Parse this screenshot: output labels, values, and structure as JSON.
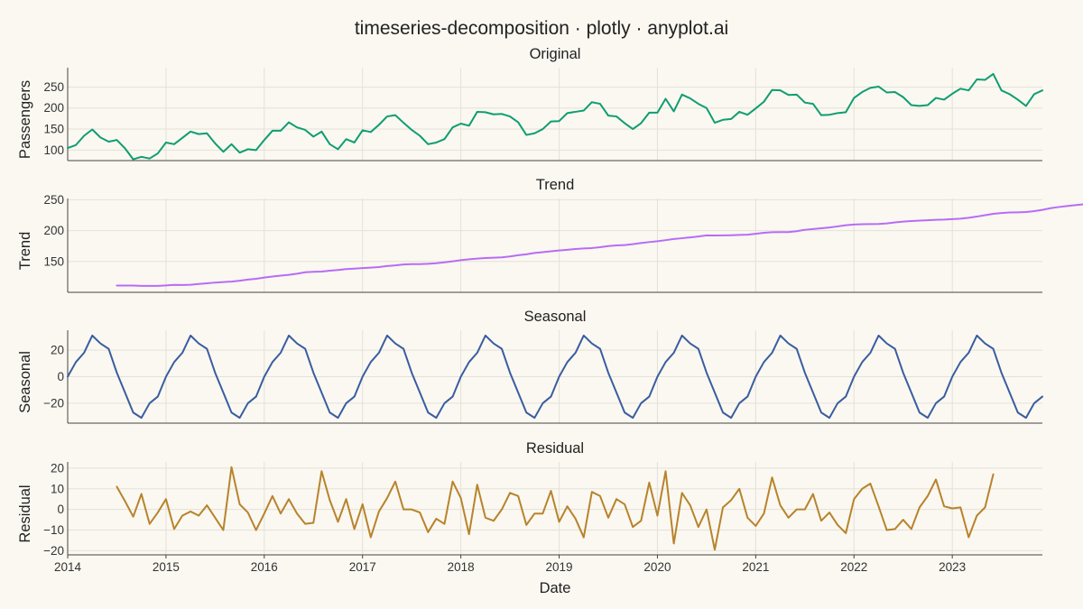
{
  "title": "timeseries-decomposition · plotly · anyplot.ai",
  "chart_data": [
    {
      "type": "line",
      "subtitle": "Original",
      "ylabel": "Passengers",
      "xlabel": "",
      "ylim": [
        75,
        296
      ],
      "yticks": [
        100,
        150,
        200,
        250
      ],
      "color": "#0F9D72",
      "x_start": "2014-01",
      "x_step": "1 month",
      "values": [
        105,
        112,
        134,
        149,
        130,
        120,
        124,
        104,
        78,
        84,
        80,
        92,
        118,
        114,
        129,
        144,
        138,
        140,
        116,
        96,
        114,
        94,
        102,
        100,
        124,
        146,
        146,
        166,
        154,
        148,
        132,
        144,
        114,
        102,
        126,
        118,
        147,
        143,
        160,
        180,
        183,
        165,
        148,
        134,
        114,
        118,
        126,
        154,
        163,
        158,
        191,
        190,
        185,
        186,
        180,
        166,
        136,
        140,
        150,
        168,
        169,
        188,
        191,
        194,
        214,
        210,
        182,
        180,
        164,
        150,
        164,
        189,
        189,
        222,
        192,
        232,
        223,
        210,
        200,
        165,
        172,
        174,
        191,
        184,
        199,
        215,
        243,
        242,
        231,
        232,
        213,
        210,
        183,
        184,
        188,
        190,
        224,
        238,
        248,
        251,
        237,
        238,
        226,
        207,
        205,
        207,
        224,
        220,
        234,
        246,
        242,
        268,
        267,
        281,
        242,
        233,
        220,
        205,
        233,
        242
      ]
    },
    {
      "type": "line",
      "subtitle": "Trend",
      "ylabel": "Trend",
      "xlabel": "",
      "ylim": [
        100,
        252
      ],
      "yticks": [
        150,
        200,
        250
      ],
      "color": "#B86CF5",
      "x_start": "2014-07",
      "x_step": "1 month",
      "values": [
        111,
        111,
        111,
        110.5,
        110.5,
        110.5,
        111.2,
        112,
        111.8,
        112.2,
        113.5,
        114.6,
        115.8,
        116.6,
        117.4,
        118.8,
        120.6,
        122,
        124,
        125.5,
        127,
        128.3,
        130.1,
        132.5,
        133.2,
        133.6,
        135,
        136.2,
        137.6,
        138.4,
        139.3,
        140,
        141,
        142.6,
        143.7,
        145.2,
        145.7,
        145.6,
        146.3,
        147.2,
        148.6,
        150.2,
        152.1,
        153.6,
        154.6,
        155.6,
        156.1,
        156.6,
        158.1,
        160.1,
        161.6,
        163.7,
        165,
        166.5,
        167.7,
        168.9,
        170.2,
        171,
        171.7,
        173,
        174.9,
        176,
        176.6,
        178,
        179.8,
        181.4,
        182.8,
        184.5,
        186.4,
        187.6,
        189,
        190.5,
        192.2,
        192,
        192.2,
        192.5,
        193,
        193.4,
        194.9,
        196.4,
        197.3,
        197.5,
        197.5,
        199,
        201.3,
        202.5,
        203.8,
        205.1,
        206.8,
        208.7,
        209.8,
        210.4,
        210.6,
        210.8,
        211.6,
        213.2,
        214.5,
        215.5,
        216.1,
        216.8,
        217.4,
        217.8,
        218.5,
        219.3,
        220.7,
        222.7,
        225,
        227.1,
        228.4,
        229.3,
        229.6,
        230,
        231.5,
        233.6,
        236.3,
        238.2,
        239.8,
        241.3,
        242.5,
        243.2,
        243.2,
        243.8
      ]
    },
    {
      "type": "line",
      "subtitle": "Seasonal",
      "ylabel": "Seasonal",
      "xlabel": "",
      "ylim": [
        -35,
        35
      ],
      "yticks": [
        -20,
        0,
        20
      ],
      "color": "#3A5DA0",
      "x_start": "2014-01",
      "x_step": "1 month",
      "pattern": [
        0,
        11,
        18,
        31,
        25,
        21,
        3,
        -12,
        -27,
        -31,
        -20,
        -15
      ],
      "values": [
        0,
        11,
        18,
        31,
        25,
        21,
        3,
        -12,
        -27,
        -31,
        -20,
        -15,
        0,
        11,
        18,
        31,
        25,
        21,
        3,
        -12,
        -27,
        -31,
        -20,
        -15,
        0,
        11,
        18,
        31,
        25,
        21,
        3,
        -12,
        -27,
        -31,
        -20,
        -15,
        0,
        11,
        18,
        31,
        25,
        21,
        3,
        -12,
        -27,
        -31,
        -20,
        -15,
        0,
        11,
        18,
        31,
        25,
        21,
        3,
        -12,
        -27,
        -31,
        -20,
        -15,
        0,
        11,
        18,
        31,
        25,
        21,
        3,
        -12,
        -27,
        -31,
        -20,
        -15,
        0,
        11,
        18,
        31,
        25,
        21,
        3,
        -12,
        -27,
        -31,
        -20,
        -15,
        0,
        11,
        18,
        31,
        25,
        21,
        3,
        -12,
        -27,
        -31,
        -20,
        -15,
        0,
        11,
        18,
        31,
        25,
        21,
        3,
        -12,
        -27,
        -31,
        -20,
        -15,
        0,
        11,
        18,
        31,
        25,
        21,
        3,
        -12,
        -27,
        -31,
        -20,
        -15
      ]
    },
    {
      "type": "line",
      "subtitle": "Residual",
      "ylabel": "Residual",
      "xlabel": "Date",
      "ylim": [
        -22,
        23
      ],
      "yticks": [
        -20,
        -10,
        0,
        10,
        20
      ],
      "color": "#B8832C",
      "x_start": "2014-07",
      "x_step": "1 month",
      "values": [
        11,
        4,
        -3.5,
        7.5,
        -7,
        -1.5,
        5,
        -9.5,
        -3,
        -1,
        -3,
        2,
        -4,
        -10,
        20.5,
        2.5,
        -1.5,
        -10,
        -2,
        6.5,
        -2,
        5,
        -2,
        -7,
        -6.5,
        18.5,
        4.5,
        -6,
        5,
        -9.5,
        2.5,
        -13.5,
        -1,
        5.5,
        13.5,
        0,
        0,
        -1.5,
        -11,
        -4.5,
        -7,
        13.5,
        5.5,
        -12,
        12,
        -4,
        -5.5,
        0,
        8,
        6.5,
        -7.5,
        -2,
        -2,
        9,
        -6,
        1.5,
        -4.5,
        -13.5,
        8.5,
        6.5,
        -4,
        5,
        2.5,
        -8.5,
        -5.5,
        13,
        -3,
        18.5,
        -16.5,
        8,
        2,
        -8.5,
        0,
        -19.5,
        1,
        4.5,
        10,
        -4,
        -8,
        -2,
        15.5,
        2,
        -4,
        0,
        0,
        7.5,
        -5.5,
        -1.5,
        -7.5,
        -11.5,
        5,
        10,
        12.5,
        1.5,
        -10,
        -9.5,
        -5,
        -9.5,
        1,
        6.5,
        14.5,
        1.5,
        0.5,
        1,
        -13.5,
        -3,
        1,
        17
      ]
    }
  ],
  "x_axis": {
    "label": "Date",
    "tick_labels": [
      "2014",
      "2015",
      "2016",
      "2017",
      "2018",
      "2019",
      "2020",
      "2021",
      "2022",
      "2023"
    ],
    "range": [
      "2014-01",
      "2023-12"
    ]
  }
}
